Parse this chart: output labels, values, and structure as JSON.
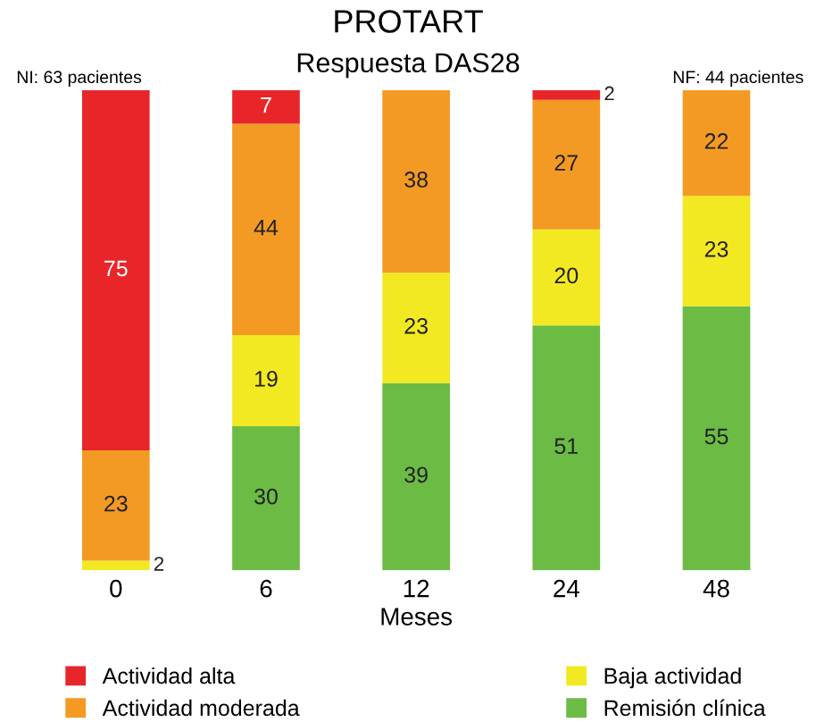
{
  "chart_data": {
    "type": "bar",
    "title": "PROTART",
    "subtitle": "Respuesta DAS28",
    "xlabel": "Meses",
    "categories": [
      "0",
      "6",
      "12",
      "24",
      "48"
    ],
    "stacked": true,
    "data_labels": true,
    "legend": "bottom",
    "tick_labels": "x",
    "grid": false,
    "annotations": [
      "NI: 63 pacientes",
      "NF: 44 pacientes"
    ],
    "series": [
      {
        "name": "Remisión clínica",
        "color": "#6cbb45",
        "values": [
          null,
          30,
          39,
          51,
          55
        ]
      },
      {
        "name": "Baja actividad",
        "color": "#f2e922",
        "values": [
          2,
          19,
          23,
          20,
          23
        ]
      },
      {
        "name": "Actividad moderada",
        "color": "#f39a24",
        "values": [
          23,
          44,
          38,
          27,
          22
        ]
      },
      {
        "name": "Actividad alta",
        "color": "#e8262a",
        "values": [
          75,
          7,
          null,
          2,
          null
        ]
      }
    ]
  }
}
